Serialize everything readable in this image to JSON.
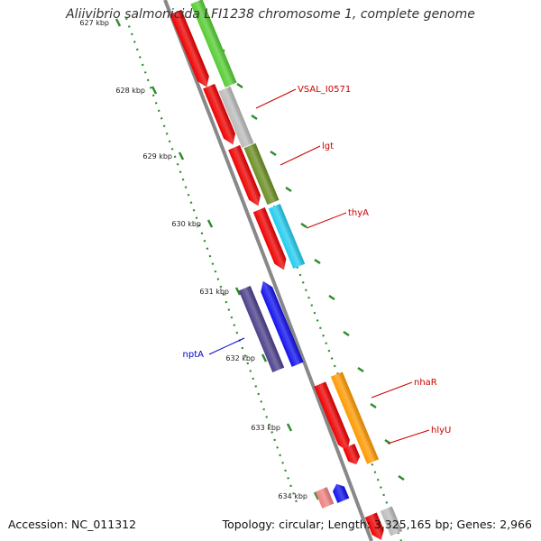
{
  "title": "Aliivibrio salmonicida LFI1238 chromosome 1, complete genome",
  "footer": {
    "accession": "Accession: NC_011312",
    "summary": "Topology: circular; Length: 3,325,165 bp; Genes: 2,966"
  },
  "ruler_labels": [
    "627 kbp",
    "628 kbp",
    "629 kbp",
    "630 kbp",
    "631 kbp",
    "632 kbp",
    "633 kbp",
    "634 kbp"
  ],
  "gene_labels": [
    {
      "text": "VSAL_I0571",
      "color": "#cc0000"
    },
    {
      "text": "lgt",
      "color": "#cc0000"
    },
    {
      "text": "thyA",
      "color": "#cc0000"
    },
    {
      "text": "nptA",
      "color": "#0000cc"
    },
    {
      "text": "nhaR",
      "color": "#cc0000"
    },
    {
      "text": "hlyU",
      "color": "#cc0000"
    }
  ],
  "colors": {
    "backbone": "#888888",
    "cds": "#ee0000",
    "tick": "#2e8b2e",
    "gene_green": "#55cc33",
    "gene_grey": "#bbbbbb",
    "gene_olive": "#6b8e23",
    "gene_cyan": "#22ccee",
    "gene_navy": "#4b3f8a",
    "gene_blue": "#1111ee",
    "gene_orange": "#ff9900",
    "gene_pink": "#f08080"
  }
}
